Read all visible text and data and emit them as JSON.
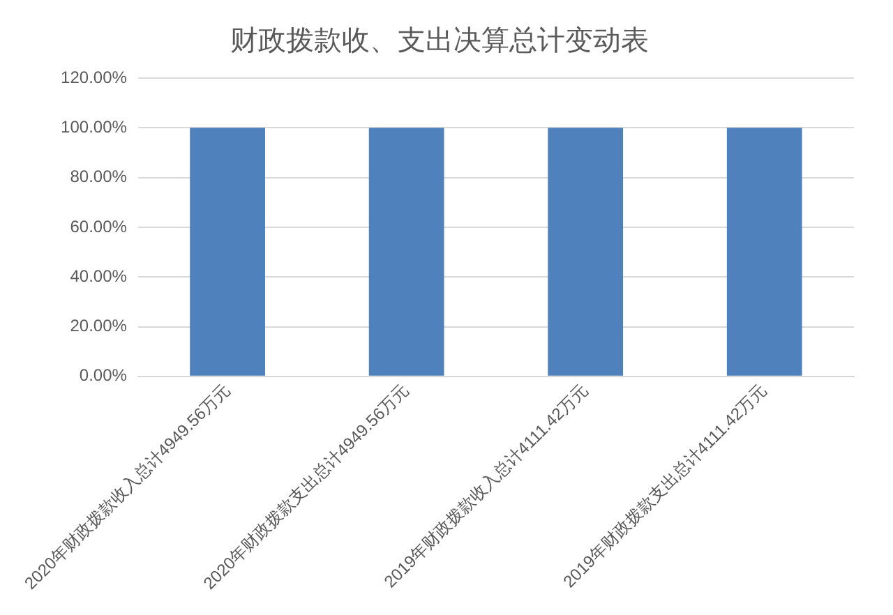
{
  "chart_data": {
    "type": "bar",
    "title": "财政拨款收、支出决算总计变动表",
    "categories": [
      "2020年财政拨款收入总计4949.56万元",
      "2020年财政拨款支出总计4949.56万元",
      "2019年财政拨款收入总计4111.42万元",
      "2019年财政拨款支出总计4111.42万元"
    ],
    "values": [
      100,
      100,
      100,
      100
    ],
    "color": "#4f81bd",
    "ylim": [
      0,
      120
    ],
    "yticks": [
      {
        "value": 0,
        "label": "0.00%"
      },
      {
        "value": 20,
        "label": "20.00%"
      },
      {
        "value": 40,
        "label": "40.00%"
      },
      {
        "value": 60,
        "label": "60.00%"
      },
      {
        "value": 80,
        "label": "80.00%"
      },
      {
        "value": 100,
        "label": "100.00%"
      },
      {
        "value": 120,
        "label": "120.00%"
      }
    ],
    "grid": "y",
    "legend": false
  }
}
